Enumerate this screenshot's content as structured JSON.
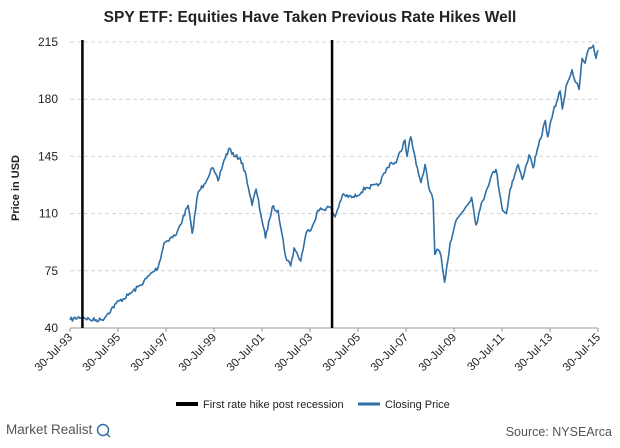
{
  "chart_data": {
    "type": "line",
    "title": "SPY ETF: Equities Have Taken Previous Rate Hikes Well",
    "ylabel": "Price in USD",
    "xlabel": "",
    "ylim": [
      40,
      215
    ],
    "y_ticks": [
      40,
      75,
      110,
      145,
      180,
      215
    ],
    "xlim": [
      "1993-07-30",
      "2015-07-30"
    ],
    "x_tick_labels": [
      "30-Jul-93",
      "30-Jul-95",
      "30-Jul-97",
      "30-Jul-99",
      "30-Jul-01",
      "30-Jul-03",
      "30-Jul-05",
      "30-Jul-07",
      "30-Jul-09",
      "30-Jul-11",
      "30-Jul-13",
      "30-Jul-15"
    ],
    "x_tick_dates": [
      "1993-07-30",
      "1995-07-30",
      "1997-07-30",
      "1999-07-30",
      "2001-07-30",
      "2003-07-30",
      "2005-07-30",
      "2007-07-30",
      "2009-07-30",
      "2011-07-30",
      "2013-07-30",
      "2015-07-30"
    ],
    "grid": "horizontal dashed",
    "legend_position": "bottom",
    "series": [
      {
        "name": "Closing Price",
        "color": "#2f6fa6",
        "x": [
          "1993-07-30",
          "1994-02-01",
          "1994-06-01",
          "1994-12-01",
          "1995-03-01",
          "1995-07-01",
          "1996-01-01",
          "1996-07-01",
          "1997-01-01",
          "1997-04-01",
          "1997-07-01",
          "1997-10-01",
          "1998-01-01",
          "1998-07-01",
          "1998-09-01",
          "1998-12-01",
          "1999-03-01",
          "1999-07-01",
          "1999-10-01",
          "2000-01-01",
          "2000-03-24",
          "2000-06-01",
          "2000-09-01",
          "2000-12-01",
          "2001-03-01",
          "2001-05-01",
          "2001-09-21",
          "2002-01-01",
          "2002-04-01",
          "2002-07-23",
          "2002-10-09",
          "2002-12-01",
          "2003-03-11",
          "2003-06-01",
          "2003-09-01",
          "2003-12-01",
          "2004-06-01",
          "2004-08-13",
          "2004-12-01",
          "2005-06-01",
          "2005-12-01",
          "2006-06-01",
          "2006-12-01",
          "2007-03-01",
          "2007-07-15",
          "2007-08-15",
          "2007-10-09",
          "2008-01-01",
          "2008-03-15",
          "2008-05-15",
          "2008-07-15",
          "2008-09-15",
          "2008-10-10",
          "2008-12-01",
          "2009-01-15",
          "2009-03-09",
          "2009-06-01",
          "2009-09-01",
          "2009-12-01",
          "2010-04-23",
          "2010-07-01",
          "2010-09-01",
          "2010-12-01",
          "2011-02-15",
          "2011-04-29",
          "2011-08-08",
          "2011-10-03",
          "2011-12-01",
          "2012-04-01",
          "2012-06-01",
          "2012-09-15",
          "2012-11-15",
          "2013-01-01",
          "2013-05-21",
          "2013-06-24",
          "2013-09-15",
          "2013-12-31",
          "2014-02-03",
          "2014-04-01",
          "2014-07-01",
          "2014-08-07",
          "2014-10-15",
          "2014-12-01",
          "2015-01-15",
          "2015-03-01",
          "2015-05-20",
          "2015-07-01",
          "2015-07-30"
        ],
        "values": [
          45,
          47,
          45,
          45,
          49,
          55,
          60,
          66,
          74,
          77,
          92,
          95,
          97,
          115,
          98,
          123,
          128,
          138,
          130,
          143,
          150,
          145,
          144,
          133,
          115,
          125,
          95,
          114,
          112,
          84,
          78,
          89,
          81,
          98,
          102,
          112,
          114,
          108,
          121,
          120,
          126,
          127,
          141,
          141,
          155,
          145,
          157,
          140,
          129,
          140,
          125,
          118,
          85,
          88,
          84,
          68,
          92,
          106,
          111,
          120,
          103,
          113,
          124,
          133,
          137,
          112,
          110,
          125,
          140,
          131,
          146,
          138,
          146,
          167,
          157,
          172,
          185,
          174,
          188,
          198,
          192,
          186,
          205,
          202,
          210,
          213,
          205,
          210
        ]
      }
    ],
    "reference_lines": {
      "name": "First rate hike post recession",
      "color": "#000000",
      "dates": [
        "1994-02-04",
        "2004-06-30"
      ]
    }
  },
  "footer": {
    "brand": "Market Realist",
    "source": "Source: NYSEArca"
  }
}
